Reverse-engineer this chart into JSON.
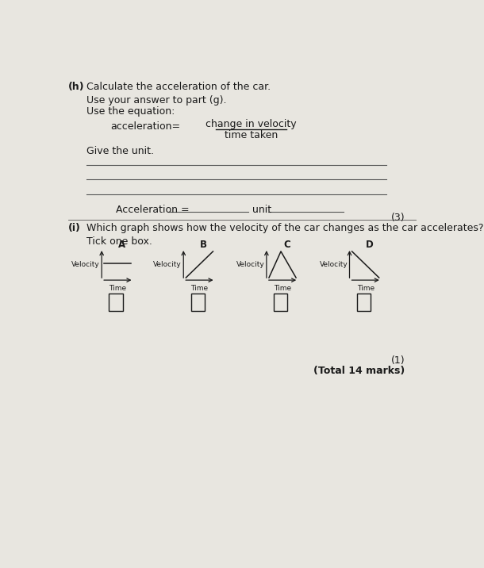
{
  "bg_color": "#e8e6e0",
  "text_color": "#1a1a1a",
  "part_h_label": "(h)",
  "part_h_title": "Calculate the acceleration of the car.",
  "line1": "Use your answer to part (g).",
  "line2": "Use the equation:",
  "eq_left": "acceleration=",
  "eq_numerator": "change in velocity",
  "eq_denominator": "time taken",
  "give_unit": "Give the unit.",
  "accel_label": "Acceleration =",
  "unit_label": "unit",
  "marks_h": "(3)",
  "part_i_label": "(i)",
  "part_i_text": "Which graph shows how the velocity of the car changes as the car accelerates?",
  "tick_one_box": "Tick one box.",
  "graph_labels": [
    "A",
    "B",
    "C",
    "D"
  ],
  "velocity_label": "Velocity",
  "time_label": "Time",
  "marks_i": "(1)",
  "total_marks": "(Total 14 marks)",
  "line_color": "#555555"
}
